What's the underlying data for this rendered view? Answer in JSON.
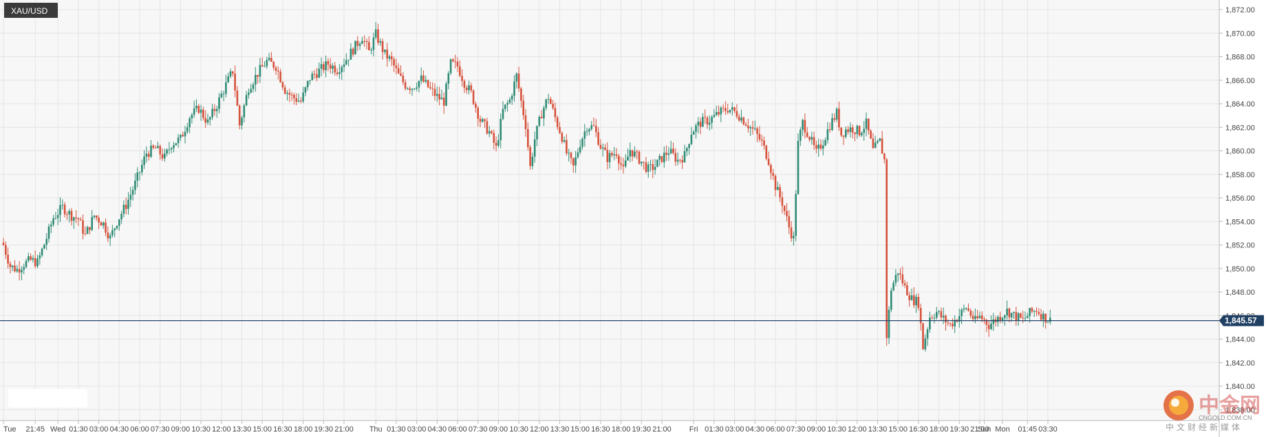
{
  "chart_data": {
    "type": "candlestick",
    "symbol": "XAU/USD",
    "current_price": 1845.57,
    "current_price_label": "1,845.57",
    "ylim": [
      1836,
      1873
    ],
    "y_ticks": [
      {
        "value": 1872,
        "label": "1,872.00"
      },
      {
        "value": 1870,
        "label": "1,870.00"
      },
      {
        "value": 1868,
        "label": "1,868.00"
      },
      {
        "value": 1866,
        "label": "1,866.00"
      },
      {
        "value": 1864,
        "label": "1,864.00"
      },
      {
        "value": 1862,
        "label": "1,862.00"
      },
      {
        "value": 1860,
        "label": "1,860.00"
      },
      {
        "value": 1858,
        "label": "1,858.00"
      },
      {
        "value": 1856,
        "label": "1,856.00"
      },
      {
        "value": 1854,
        "label": "1,854.00"
      },
      {
        "value": 1852,
        "label": "1,852.00"
      },
      {
        "value": 1850,
        "label": "1,850.00"
      },
      {
        "value": 1848,
        "label": "1,848.00"
      },
      {
        "value": 1846,
        "label": "1,846.00"
      },
      {
        "value": 1844,
        "label": "1,844.00"
      },
      {
        "value": 1842,
        "label": "1,842.00"
      },
      {
        "value": 1840,
        "label": "1,840.00"
      },
      {
        "value": 1838,
        "label": "1,838.00"
      }
    ],
    "x_ticks": [
      {
        "label": "Tue",
        "bar": 0
      },
      {
        "label": "21:45",
        "bar": 14
      },
      {
        "label": "Wed",
        "bar": 24
      },
      {
        "label": "01:30",
        "bar": 33
      },
      {
        "label": "03:00",
        "bar": 42
      },
      {
        "label": "04:30",
        "bar": 51
      },
      {
        "label": "06:00",
        "bar": 60
      },
      {
        "label": "07:30",
        "bar": 69
      },
      {
        "label": "09:00",
        "bar": 78
      },
      {
        "label": "10:30",
        "bar": 87
      },
      {
        "label": "12:00",
        "bar": 96
      },
      {
        "label": "13:30",
        "bar": 105
      },
      {
        "label": "15:00",
        "bar": 114
      },
      {
        "label": "16:30",
        "bar": 123
      },
      {
        "label": "18:00",
        "bar": 132
      },
      {
        "label": "19:30",
        "bar": 141
      },
      {
        "label": "21:00",
        "bar": 150
      },
      {
        "label": "Thu",
        "bar": 164
      },
      {
        "label": "01:30",
        "bar": 173
      },
      {
        "label": "03:00",
        "bar": 182
      },
      {
        "label": "04:30",
        "bar": 191
      },
      {
        "label": "06:00",
        "bar": 200
      },
      {
        "label": "07:30",
        "bar": 209
      },
      {
        "label": "09:00",
        "bar": 218
      },
      {
        "label": "10:30",
        "bar": 227
      },
      {
        "label": "12:00",
        "bar": 236
      },
      {
        "label": "13:30",
        "bar": 245
      },
      {
        "label": "15:00",
        "bar": 254
      },
      {
        "label": "16:30",
        "bar": 263
      },
      {
        "label": "18:00",
        "bar": 272
      },
      {
        "label": "19:30",
        "bar": 281
      },
      {
        "label": "21:00",
        "bar": 290
      },
      {
        "label": "Fri",
        "bar": 304
      },
      {
        "label": "01:30",
        "bar": 313
      },
      {
        "label": "03:00",
        "bar": 322
      },
      {
        "label": "04:30",
        "bar": 331
      },
      {
        "label": "06:00",
        "bar": 340
      },
      {
        "label": "07:30",
        "bar": 349
      },
      {
        "label": "09:00",
        "bar": 358
      },
      {
        "label": "10:30",
        "bar": 367
      },
      {
        "label": "12:00",
        "bar": 376
      },
      {
        "label": "13:30",
        "bar": 385
      },
      {
        "label": "15:00",
        "bar": 394
      },
      {
        "label": "16:30",
        "bar": 403
      },
      {
        "label": "18:00",
        "bar": 412
      },
      {
        "label": "19:30",
        "bar": 421
      },
      {
        "label": "21:00",
        "bar": 430
      },
      {
        "label": "Sun",
        "bar": 432
      },
      {
        "label": "Mon",
        "bar": 440
      },
      {
        "label": "01:45",
        "bar": 451
      },
      {
        "label": "03:30",
        "bar": 460
      }
    ],
    "anchors": [
      [
        0,
        1852.0
      ],
      [
        3,
        1850.2
      ],
      [
        6,
        1849.9
      ],
      [
        9,
        1850.4
      ],
      [
        12,
        1850.7
      ],
      [
        15,
        1850.5
      ],
      [
        19,
        1852.6
      ],
      [
        22,
        1854.3
      ],
      [
        26,
        1855.2
      ],
      [
        30,
        1854.5
      ],
      [
        33,
        1854.2
      ],
      [
        36,
        1852.8
      ],
      [
        40,
        1854.5
      ],
      [
        44,
        1853.8
      ],
      [
        47,
        1852.6
      ],
      [
        50,
        1854.0
      ],
      [
        54,
        1855.4
      ],
      [
        58,
        1857.2
      ],
      [
        63,
        1859.8
      ],
      [
        67,
        1860.2
      ],
      [
        71,
        1859.4
      ],
      [
        74,
        1860.6
      ],
      [
        78,
        1861.0
      ],
      [
        82,
        1862.9
      ],
      [
        86,
        1863.6
      ],
      [
        90,
        1862.4
      ],
      [
        94,
        1863.9
      ],
      [
        98,
        1865.6
      ],
      [
        101,
        1866.8
      ],
      [
        104,
        1862.2
      ],
      [
        108,
        1865.4
      ],
      [
        112,
        1866.6
      ],
      [
        116,
        1867.6
      ],
      [
        120,
        1867.2
      ],
      [
        124,
        1865.2
      ],
      [
        127,
        1864.6
      ],
      [
        131,
        1864.2
      ],
      [
        135,
        1866.2
      ],
      [
        139,
        1866.8
      ],
      [
        143,
        1867.4
      ],
      [
        147,
        1866.9
      ],
      [
        151,
        1867.8
      ],
      [
        155,
        1868.9
      ],
      [
        158,
        1869.7
      ],
      [
        161,
        1868.4
      ],
      [
        164,
        1869.9
      ],
      [
        168,
        1868.2
      ],
      [
        171,
        1867.6
      ],
      [
        174,
        1866.4
      ],
      [
        177,
        1865.6
      ],
      [
        180,
        1865.4
      ],
      [
        184,
        1866.1
      ],
      [
        188,
        1865.2
      ],
      [
        191,
        1864.6
      ],
      [
        194,
        1864.2
      ],
      [
        197,
        1867.4
      ],
      [
        200,
        1867.2
      ],
      [
        203,
        1865.8
      ],
      [
        206,
        1864.9
      ],
      [
        210,
        1862.6
      ],
      [
        214,
        1861.6
      ],
      [
        217,
        1860.2
      ],
      [
        220,
        1863.4
      ],
      [
        223,
        1864.3
      ],
      [
        226,
        1866.4
      ],
      [
        228,
        1864.2
      ],
      [
        230,
        1862.2
      ],
      [
        232,
        1858.6
      ],
      [
        234,
        1861.0
      ],
      [
        237,
        1863.2
      ],
      [
        240,
        1864.6
      ],
      [
        243,
        1862.8
      ],
      [
        246,
        1861.2
      ],
      [
        248,
        1859.8
      ],
      [
        251,
        1858.6
      ],
      [
        254,
        1860.7
      ],
      [
        257,
        1862.1
      ],
      [
        260,
        1862.0
      ],
      [
        263,
        1860.4
      ],
      [
        266,
        1859.4
      ],
      [
        270,
        1859.9
      ],
      [
        273,
        1858.3
      ],
      [
        276,
        1860.1
      ],
      [
        280,
        1859.3
      ],
      [
        284,
        1858.4
      ],
      [
        287,
        1858.7
      ],
      [
        290,
        1859.4
      ],
      [
        293,
        1860.0
      ],
      [
        297,
        1859.2
      ],
      [
        300,
        1859.6
      ],
      [
        303,
        1861.6
      ],
      [
        307,
        1862.4
      ],
      [
        311,
        1862.6
      ],
      [
        315,
        1863.2
      ],
      [
        319,
        1863.6
      ],
      [
        323,
        1863.2
      ],
      [
        327,
        1862.4
      ],
      [
        331,
        1861.6
      ],
      [
        334,
        1860.7
      ],
      [
        337,
        1859.2
      ],
      [
        340,
        1857.0
      ],
      [
        343,
        1855.6
      ],
      [
        346,
        1853.5
      ],
      [
        348,
        1852.5
      ],
      [
        350,
        1860.6
      ],
      [
        352,
        1862.4
      ],
      [
        355,
        1861.2
      ],
      [
        358,
        1859.8
      ],
      [
        361,
        1860.8
      ],
      [
        364,
        1862.2
      ],
      [
        367,
        1863.2
      ],
      [
        369,
        1861.4
      ],
      [
        371,
        1861.8
      ],
      [
        374,
        1861.9
      ],
      [
        377,
        1861.6
      ],
      [
        380,
        1862.3
      ],
      [
        383,
        1860.0
      ],
      [
        386,
        1860.8
      ],
      [
        388,
        1859.2
      ],
      [
        389,
        1844.3
      ],
      [
        391,
        1848.3
      ],
      [
        394,
        1849.8
      ],
      [
        397,
        1848.4
      ],
      [
        400,
        1847.4
      ],
      [
        403,
        1847.1
      ],
      [
        405,
        1843.3
      ],
      [
        408,
        1845.9
      ],
      [
        411,
        1846.3
      ],
      [
        414,
        1845.7
      ],
      [
        417,
        1845.2
      ],
      [
        420,
        1845.8
      ],
      [
        424,
        1846.7
      ],
      [
        428,
        1845.5
      ],
      [
        430,
        1845.9
      ],
      [
        432,
        1845.6
      ],
      [
        434,
        1845.2
      ],
      [
        438,
        1845.8
      ],
      [
        442,
        1846.4
      ],
      [
        446,
        1845.9
      ],
      [
        449,
        1845.6
      ],
      [
        452,
        1846.2
      ],
      [
        455,
        1846.5
      ],
      [
        458,
        1845.9
      ],
      [
        461,
        1845.57
      ]
    ],
    "watermark": {
      "brand": "中金网",
      "url": "CNGOLD.COM.CN",
      "tagline": "中文财经新媒体"
    }
  },
  "colors": {
    "up": "#2e8b74",
    "down": "#d6503a",
    "grid": "#e4e4e4",
    "plot_bg": "#f7f7f7",
    "axis": "#b8b8b8",
    "price_line": "#24446b",
    "price_box": "#1f3f63",
    "symbol_box": "#3a3a3a"
  },
  "icons": {
    "logo": "cngold-logo-icon"
  }
}
